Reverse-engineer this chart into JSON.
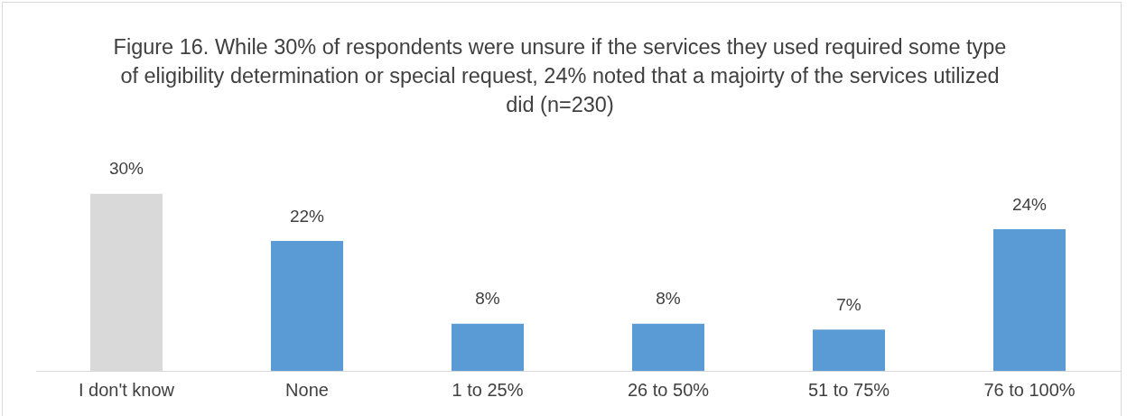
{
  "chart_data": {
    "type": "bar",
    "title": "Figure 16. While 30% of respondents were unsure if the services they used required some type of eligibility determination or special request, 24% noted that a majoirty of the services utilized did (n=230)",
    "categories": [
      "I don't know",
      "None",
      "1 to 25%",
      "26 to 50%",
      "51 to 75%",
      "76 to 100%"
    ],
    "values": [
      30,
      22,
      8,
      8,
      7,
      24
    ],
    "value_labels": [
      "30%",
      "22%",
      "8%",
      "8%",
      "7%",
      "24%"
    ],
    "colors": [
      "#d9d9d9",
      "#5b9bd5",
      "#5b9bd5",
      "#5b9bd5",
      "#5b9bd5",
      "#5b9bd5"
    ],
    "grid": false,
    "legend": false
  }
}
